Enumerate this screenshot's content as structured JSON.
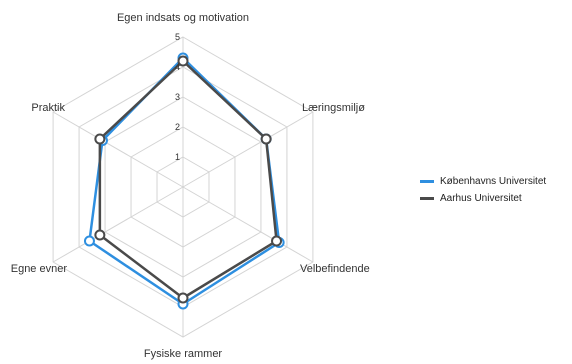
{
  "chart_data": {
    "type": "radar",
    "categories": [
      "Egen indsats og motivation",
      "Læringsmiljø",
      "Velbefindende",
      "Fysiske rammer",
      "Egne evner",
      "Praktik"
    ],
    "series": [
      {
        "name": "Københavns Universitet",
        "color": "#2e8fe0",
        "values": [
          4.3,
          3.2,
          3.7,
          3.9,
          3.6,
          3.1
        ]
      },
      {
        "name": "Aarhus Universitet",
        "color": "#4a4a4a",
        "values": [
          4.2,
          3.2,
          3.6,
          3.7,
          3.2,
          3.2
        ]
      }
    ],
    "rlim": [
      0,
      5
    ],
    "ticks": [
      "1",
      "2",
      "3",
      "4",
      "5"
    ],
    "grid": true,
    "legend_position": "right"
  }
}
